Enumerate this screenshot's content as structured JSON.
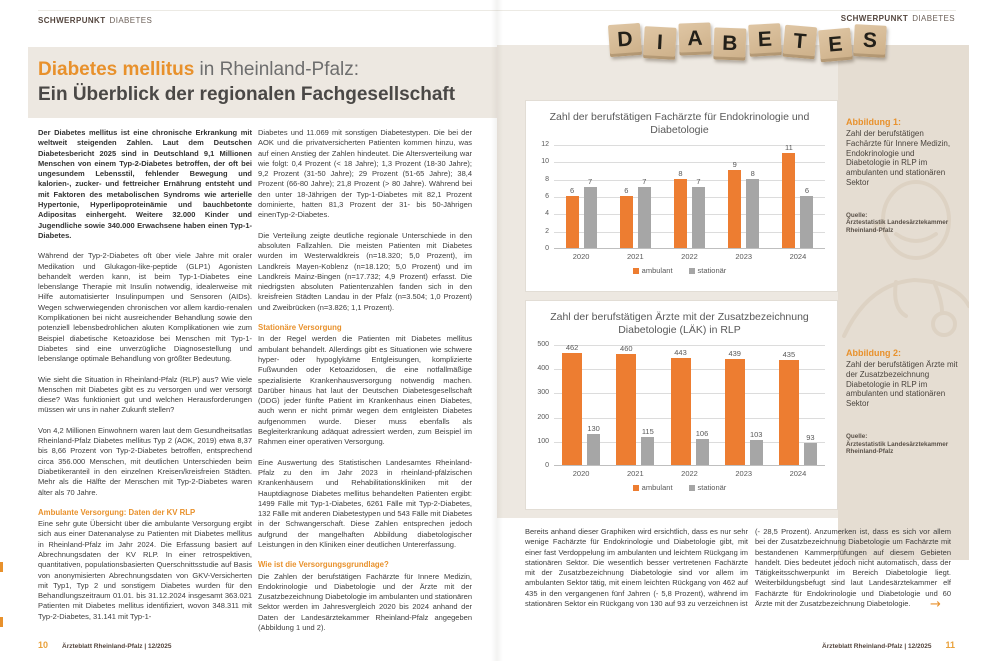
{
  "journal": "Ärzteblatt Rheinland-Pfalz | 12/2025",
  "eyebrow": {
    "strong": "SCHWERPUNKT",
    "rest": "DIABETES"
  },
  "page_left": {
    "title": {
      "highlight": "Diabetes mellitus",
      "rest": " in Rheinland-Pfalz:",
      "line2": "Ein Überblick der regionalen Fachgesellschaft"
    },
    "col1": {
      "p1": "Der Diabetes mellitus ist eine chronische Erkrankung mit weltweit steigenden Zahlen. Laut dem Deutschen Diabetesbericht 2025 sind in Deutschland 9,1 Millionen Menschen von einem Typ-2-Diabetes betroffen, der oft bei ungesundem Lebensstil, fehlender Bewegung und kalorien-, zucker- und fettreicher Ernährung entsteht und mit Faktoren des metabolischen Syndroms wie arterielle Hypertonie, Hyperlipoproteinämie und bauchbetonte Adipositas einhergeht. Weitere 32.000 Kinder und Jugendliche sowie 340.000 Erwachsene haben einen Typ-1-Diabetes.",
      "p2": "Während der Typ-2-Diabetes oft über viele Jahre mit oraler Medikation und Glukagon-like-peptide (GLP1) Agonisten behandelt werden kann, ist beim Typ-1-Diabetes eine lebenslange Therapie mit Insulin notwendig, idealerweise mit Hilfe automatisierter Insulinpumpen und Sensoren (AIDs). Wegen schwerwiegenden chronischen vor allem kardio-renalen Komplikationen bei nicht ausreichender Behandlung sowie den potenziell lebensbedrohlichen akuten Komplikationen wie zum Beispiel diabetische Ketoazidose bei Menschen mit Typ-1-Diabetes sind eine unverzügliche Diagnosestellung und lebenslange optimale Behandlung von größter Bedeutung.",
      "p3": "Wie sieht die Situation in Rheinland-Pfalz (RLP) aus? Wie viele Menschen mit Diabetes gibt es zu versorgen und wer versorgt diese? Was funktioniert gut und welchen Herausforderungen müssen wir uns in naher Zukunft stellen?",
      "p4": "Von 4,2 Millionen Einwohnern waren laut dem Gesundheitsatlas Rheinland-Pfalz Diabetes mellitus Typ 2 (AOK, 2019) etwa 8,37 bis 8,66 Prozent von Typ-2-Diabetes betroffen, entsprechend circa 356.000 Menschen, mit deutlichen Unterschieden beim Diabetikeranteil in den einzelnen Kreisen/kreisfreien Städten. Mehr als die Hälfte der Menschen mit Typ-2-Diabetes waren älter als 70 Jahre.",
      "h1": "Ambulante Versorgung: Daten der KV RLP",
      "p5": "Eine sehr gute Übersicht über die ambulante Versorgung ergibt sich aus einer Datenanalyse zu Patienten mit Diabetes mellitus in Rheinland-Pfalz im Jahr 2024. Die Erfassung basiert auf Abrechnungsdaten der KV RLP. In einer retrospektiven, quantitativen, populationsbasierten Querschnittsstudie auf Basis von anonymisierten Abrechnungsdaten von GKV-Versicherten mit Typ1, Typ 2 und sonstigem Diabetes wurden für den Behandlungszeitraum 01.01. bis 31.12.2024 insgesamt 363.021 Patienten mit Diabetes mellitus identifiziert, wovon 348.311 mit Typ-2-Diabetes, 31.141 mit Typ-1-"
    },
    "col2": {
      "p1": "Diabetes und 11.069 mit sonstigen Diabetestypen. Die bei der AOK und die privatversicherten Patienten kommen hinzu, was auf einen Anstieg der Zahlen hindeutet. Die Altersverteilung war wie folgt: 0,4 Prozent (< 18 Jahre); 1,3 Prozent (18-30 Jahre); 9,2 Prozent (31-50 Jahre); 29 Prozent (51-65 Jahre); 38,4 Prozent (66-80 Jahre); 21,8 Prozent (> 80 Jahre). Während bei den unter 18-Jährigen der Typ-1-Diabetes mit 82,1 Prozent dominierte, hatten 81,3 Prozent der 31- bis 50-Jährigen einenTyp-2-Diabetes.",
      "p2": "Die Verteilung zeigte deutliche regionale Unterschiede in den absoluten Fallzahlen. Die meisten Patienten mit Diabetes wurden im Westerwaldkreis (n=18.320; 5,0 Prozent), im Landkreis Mayen-Koblenz (n=18.120; 5,0 Prozent) und im Landkreis Mainz-Bingen (n=17.732; 4,9 Prozent) erfasst. Die niedrigsten absoluten Patientenzahlen fanden sich in den kreisfreien Städten Landau in der Pfalz (n=3.504; 1,0 Prozent) und Zweibrücken (n=3.826; 1,1 Prozent).",
      "h1": "Stationäre Versorgung",
      "p3": "In der Regel werden die Patienten mit Diabetes mellitus ambulant behandelt. Allerdings gibt es Situationen wie schwere hyper- oder hypoglykäme Entgleisungen, komplizierte Fußwunden oder Ketoazidosen, die eine notfallmäßige spezialisierte Krankenhausversorgung notwendig machen. Darüber hinaus hat laut der Deutschen Diabetesgesellschaft (DDG) jeder fünfte Patient im Krankenhaus einen Diabetes, auch wenn er nicht primär wegen dem entgleisten Diabetes aufgenommen wurde. Dieser muss ebenfalls als Begleiterkrankung adäquat adressiert werden, zum Beispiel im Rahmen einer operativen Versorgung.",
      "p4": "Eine Auswertung des Statistischen Landesamtes Rheinland-Pfalz zu den im Jahr 2023 in rheinland-pfälzischen Krankenhäusern und Rehabilitationskliniken mit der Hauptdiagnose Diabetes mellitus behandelten Patienten ergibt: 1499 Fälle mit Typ-1-Diabetes, 6261 Fälle mit Typ-2-Diabetes, 132 Fälle mit anderen Diabetestypen und 543 Fälle mit Diabetes in der Schwangerschaft. Diese Zahlen entsprechen jedoch aufgrund der mangelhaften Abbildung diabetologischer Leistungen in den Kliniken einer deutlichen Untererfassung.",
      "h2": "Wie ist die Versorgungsgrundlage?",
      "p5": "Die Zahlen der berufstätigen Fachärzte für Innere Medizin, Endokrinologie und Diabetologie und der Ärzte mit der Zusatzbezeichnung Diabetologie im ambulanten und stationären Sektor werden im Jahresvergleich 2020 bis 2024 anhand der Daten der Landesärztekammer Rheinland-Pfalz angegeben (Abbildung 1 und 2)."
    },
    "footer": {
      "page": "10",
      "journal": "Ärzteblatt Rheinland-Pfalz | 12/2025"
    }
  },
  "page_right": {
    "tiles": [
      "D",
      "I",
      "A",
      "B",
      "E",
      "T",
      "E",
      "S"
    ],
    "sidebar": {
      "fig1": {
        "label": "Abbildung 1:",
        "caption": "Zahl der berufstätigen Fachärzte für Innere Medizin, Endokrinologie und Diabetologie in RLP im ambulanten und stationären Sektor",
        "source_label": "Quelle:",
        "source": "Ärztestatistik Landesärztekammer Rheinland-Pfalz"
      },
      "fig2": {
        "label": "Abbildung 2:",
        "caption": "Zahl der berufstätigen Ärzte mit der Zusatzbezeichnung Diabetologie in RLP im ambulanten und stationären Sektor",
        "source_label": "Quelle:",
        "source": "Ärztestatistik Landesärztekammer Rheinland-Pfalz"
      }
    },
    "bottom": {
      "col1": "Bereits anhand dieser Graphiken wird ersichtlich, dass es nur sehr wenige Fachärzte für Endokrinologie und Diabetologie gibt, mit einer fast Verdoppelung im ambulanten und leichtem Rückgang im stationären Sektor. Die wesentlich besser vertretenen Fachärzte mit der Zusatzbezeichnung Diabetologie sind vor allem im ambulanten Sektor tätig, mit einem leichten Rückgang von 462 auf 435 in den vergangenen fünf Jahren (- 5,8 Prozent), während im stationären Sektor ein Rückgang von 130 auf 93 zu verzeichnen ist",
      "col2": "(- 28,5 Prozent). Anzumerken ist, dass es sich vor allem bei der Zusatzbezeichnung Diabetologie um Fachärzte mit bestandenen Kammerprüfungen auf diesem Gebieten handelt. Dies bedeutet jedoch nicht automatisch, dass der Tätigkeitsschwerpunkt im Bereich Diabetologie liegt. Weiterbildungsbefugt sind laut Landesärztekammer elf Fachärzte für Endokrinologie und Diabetologie und 60 Ärzte mit der Zusatzbezeichnung Diabetologie.",
      "arrow": "→"
    },
    "footer": {
      "journal": "Ärzteblatt Rheinland-Pfalz | 12/2025",
      "page": "11"
    }
  },
  "chart_data": [
    {
      "type": "bar",
      "title": "Zahl der berufstätigen Fachärzte für Endokrinologie und Diabetologie",
      "categories": [
        "2020",
        "2021",
        "2022",
        "2023",
        "2024"
      ],
      "series": [
        {
          "name": "ambulant",
          "color": "#ED7D31",
          "values": [
            6,
            6,
            8,
            9,
            11
          ]
        },
        {
          "name": "stationär",
          "color": "#A6A6A6",
          "values": [
            7,
            7,
            7,
            8,
            6
          ]
        }
      ],
      "ylim": [
        0,
        12
      ],
      "yticks": [
        0,
        2,
        4,
        6,
        8,
        10,
        12
      ],
      "grid": true,
      "legend_position": "bottom"
    },
    {
      "type": "bar",
      "title": "Zahl der berufstätigen Ärzte mit der Zusatzbezeichnung Diabetologie (LÄK) in RLP",
      "categories": [
        "2020",
        "2021",
        "2022",
        "2023",
        "2024"
      ],
      "series": [
        {
          "name": "ambulant",
          "color": "#ED7D31",
          "values": [
            462,
            460,
            443,
            439,
            435
          ]
        },
        {
          "name": "stationär",
          "color": "#A6A6A6",
          "values": [
            130,
            115,
            106,
            103,
            93
          ]
        }
      ],
      "ylim": [
        0,
        500
      ],
      "yticks": [
        0,
        100,
        200,
        300,
        400,
        500
      ],
      "grid": true,
      "legend_position": "bottom"
    }
  ],
  "colors": {
    "accent_orange": "#E8912C",
    "bar_orange": "#ED7D31",
    "bar_gray": "#A6A6A6",
    "beige": "#EDE8E1",
    "sidebar_beige": "#E5DDD2"
  }
}
